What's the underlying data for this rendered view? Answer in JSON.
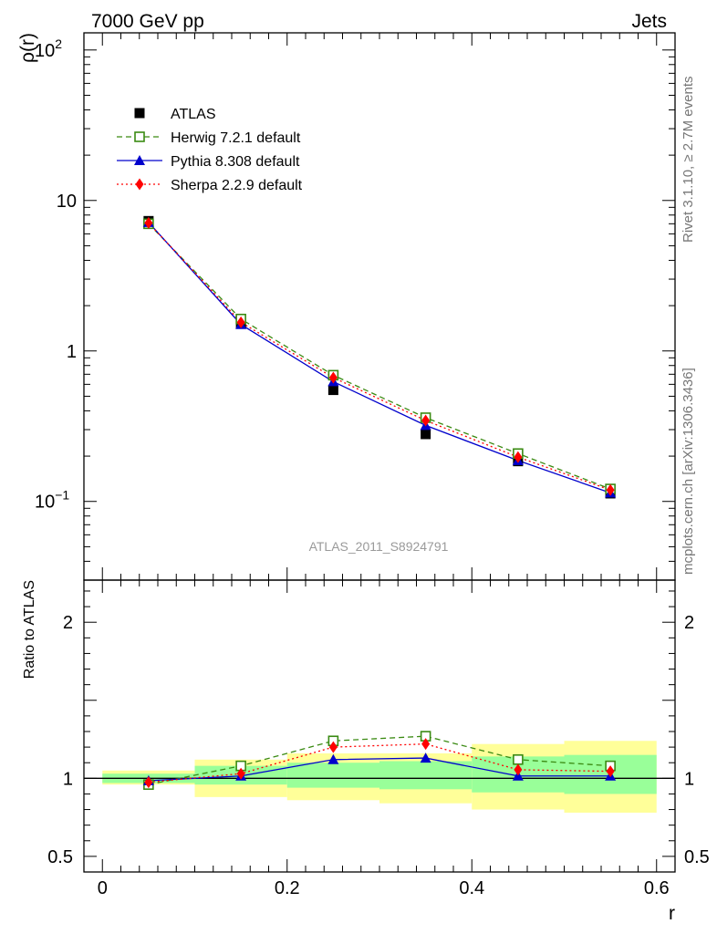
{
  "header": {
    "left_label": "7000 GeV pp",
    "right_label": "Jets"
  },
  "side_labels": {
    "top": "Rivet 3.1.10, ≥ 2.7M events",
    "bottom": "mcplots.cern.ch [arXiv:1306.3436]"
  },
  "watermark": "ATLAS_2011_S8924791",
  "colors": {
    "data": "#000000",
    "herwig": "#3a8a12",
    "pythia": "#0000cc",
    "sherpa": "#ff0000",
    "band_inner": "#99ff99",
    "band_outer": "#ffff99"
  },
  "chart_data": [
    {
      "type": "line",
      "ylabel": "ρ(r)",
      "xlabel": "",
      "y_scale": "log",
      "xlim": [
        -0.02,
        0.62
      ],
      "ylim": [
        0.03,
        130
      ],
      "y_ticks": [
        {
          "value": 0.1,
          "label": "10",
          "exp": "−1"
        },
        {
          "value": 1,
          "label": "1",
          "exp": ""
        },
        {
          "value": 10,
          "label": "10",
          "exp": ""
        },
        {
          "value": 100,
          "label": "10",
          "exp": "2"
        }
      ],
      "legend_position": "top-left",
      "x": [
        0.05,
        0.15,
        0.25,
        0.35,
        0.45,
        0.55
      ],
      "series": [
        {
          "name": "ATLAS",
          "key": "data",
          "marker": "square-filled",
          "values": [
            7.3,
            1.52,
            0.55,
            0.28,
            0.185,
            0.113
          ]
        },
        {
          "name": "Herwig 7.2.1 default",
          "key": "herwig",
          "marker": "square-open",
          "line": "dashed",
          "values": [
            7.0,
            1.63,
            0.69,
            0.36,
            0.208,
            0.121
          ]
        },
        {
          "name": "Pythia 8.308 default",
          "key": "pythia",
          "marker": "triangle",
          "line": "solid",
          "values": [
            7.15,
            1.5,
            0.625,
            0.32,
            0.187,
            0.114
          ]
        },
        {
          "name": "Sherpa 2.2.9 default",
          "key": "sherpa",
          "marker": "diamond",
          "line": "dotted",
          "values": [
            7.1,
            1.55,
            0.665,
            0.345,
            0.197,
            0.119
          ]
        }
      ]
    },
    {
      "type": "line",
      "ylabel": "Ratio to ATLAS",
      "xlabel": "r",
      "xlim": [
        -0.02,
        0.62
      ],
      "ylim": [
        0.4,
        2.27
      ],
      "x_ticks": [
        {
          "value": 0,
          "label": "0"
        },
        {
          "value": 0.2,
          "label": "0.2"
        },
        {
          "value": 0.4,
          "label": "0.4"
        },
        {
          "value": 0.6,
          "label": "0.6"
        }
      ],
      "y_ticks": [
        {
          "value": 0.5,
          "label": "0.5"
        },
        {
          "value": 1,
          "label": "1"
        },
        {
          "value": 2,
          "label": "2"
        }
      ],
      "x": [
        0.05,
        0.15,
        0.25,
        0.35,
        0.45,
        0.55
      ],
      "bins": [
        [
          0.0,
          0.1
        ],
        [
          0.1,
          0.2
        ],
        [
          0.2,
          0.3
        ],
        [
          0.3,
          0.4
        ],
        [
          0.4,
          0.5
        ],
        [
          0.5,
          0.6
        ]
      ],
      "band_inner": [
        [
          0.97,
          1.03
        ],
        [
          0.96,
          1.08
        ],
        [
          0.94,
          1.1
        ],
        [
          0.93,
          1.11
        ],
        [
          0.91,
          1.14
        ],
        [
          0.9,
          1.15
        ]
      ],
      "band_outer": [
        [
          0.96,
          1.05
        ],
        [
          0.88,
          1.12
        ],
        [
          0.86,
          1.16
        ],
        [
          0.84,
          1.16
        ],
        [
          0.8,
          1.22
        ],
        [
          0.78,
          1.24
        ]
      ],
      "series": [
        {
          "name": "Herwig 7.2.1 default",
          "key": "herwig",
          "marker": "square-open",
          "line": "dashed",
          "values": [
            0.96,
            1.08,
            1.24,
            1.27,
            1.12,
            1.08
          ]
        },
        {
          "name": "Pythia 8.308 default",
          "key": "pythia",
          "marker": "triangle",
          "line": "solid",
          "values": [
            0.985,
            1.015,
            1.12,
            1.13,
            1.015,
            1.015
          ]
        },
        {
          "name": "Sherpa 2.2.9 default",
          "key": "sherpa",
          "marker": "diamond",
          "line": "dotted",
          "values": [
            0.975,
            1.03,
            1.2,
            1.22,
            1.055,
            1.045
          ]
        }
      ]
    }
  ]
}
